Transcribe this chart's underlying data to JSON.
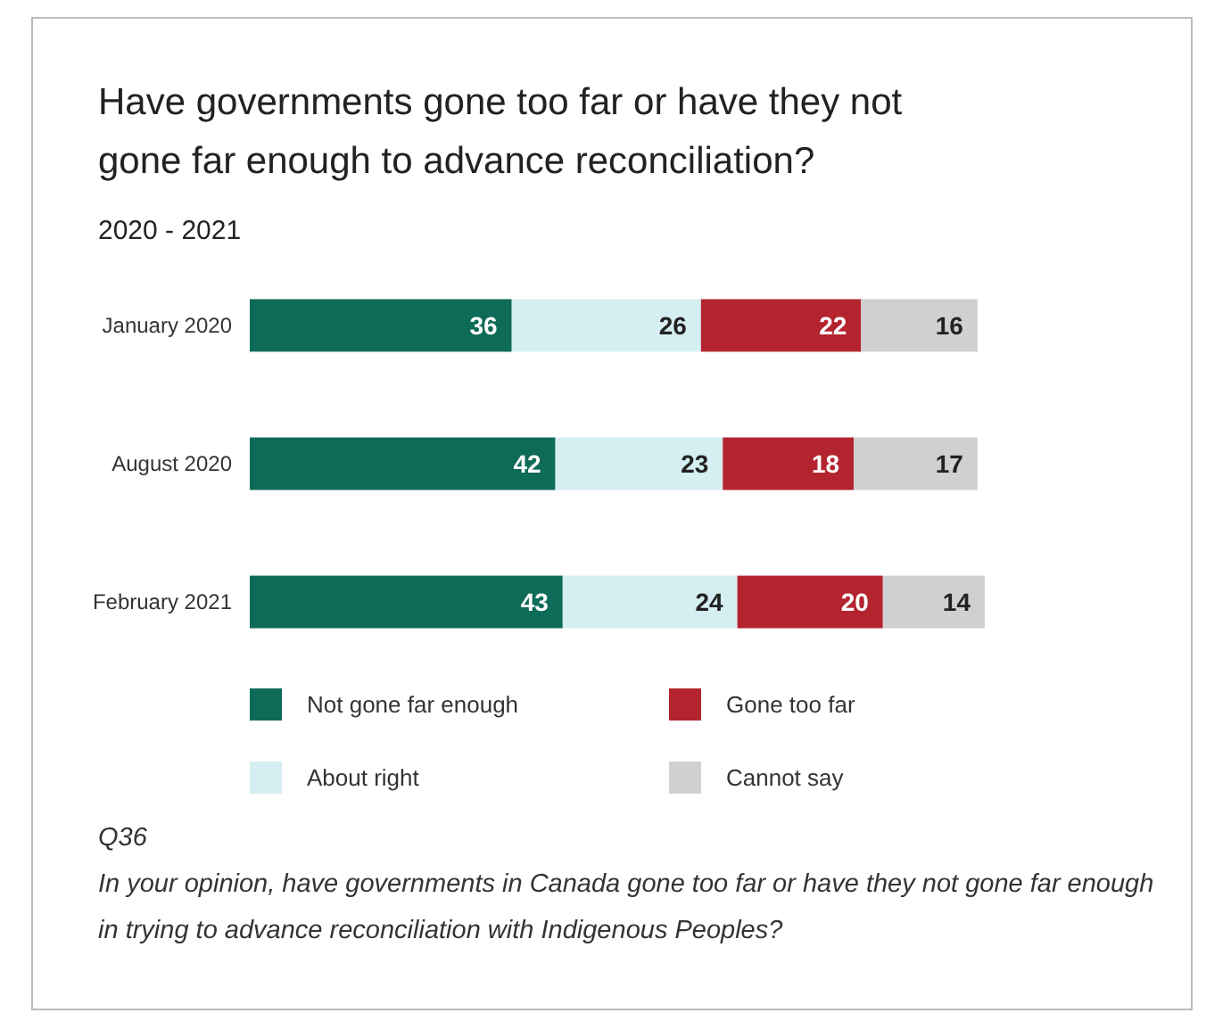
{
  "chart_data": {
    "type": "bar",
    "orientation": "horizontal",
    "stacked": true,
    "title": "Have governments gone too far or have they not gone far enough to advance reconciliation?",
    "subtitle": "2020 - 2021",
    "categories": [
      "January 2020",
      "August 2020",
      "February 2021"
    ],
    "series": [
      {
        "name": "Not gone far enough",
        "color": "#0e6b58",
        "values": [
          36,
          42,
          43
        ]
      },
      {
        "name": "About right",
        "color": "#d5eef1",
        "values": [
          26,
          23,
          24
        ]
      },
      {
        "name": "Gone too far",
        "color": "#b3242f",
        "values": [
          22,
          18,
          20
        ]
      },
      {
        "name": "Cannot say",
        "color": "#d0d0d0",
        "values": [
          16,
          17,
          14
        ]
      }
    ],
    "data_labels": true,
    "legend": "bottom",
    "annotations": [
      "Q36",
      "In your opinion, have governments in Canada gone too far or have they not gone far enough in trying to advance reconciliation with Indigenous Peoples?"
    ]
  }
}
